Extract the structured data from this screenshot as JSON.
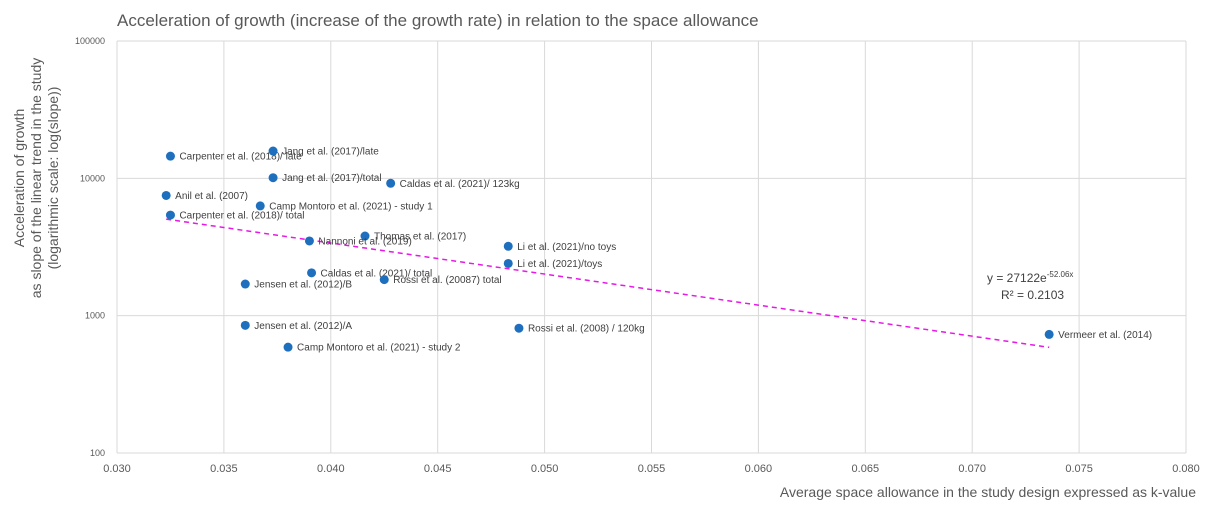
{
  "chart_data": {
    "type": "scatter",
    "title": "Acceleration of growth (increase of the growth rate) in relation to the space allowance",
    "xlabel": "Average space allowance in the study design expressed as k-value",
    "ylabel": [
      "Acceleration of growth",
      "as slope of the linear trend in the study",
      "(logarithmic scale: log(slope))"
    ],
    "xlim": [
      0.03,
      0.08
    ],
    "ylim": [
      100,
      100000
    ],
    "yscale": "log",
    "grid": true,
    "x_ticks": [
      "0.030",
      "0.035",
      "0.040",
      "0.045",
      "0.050",
      "0.055",
      "0.060",
      "0.065",
      "0.070",
      "0.075",
      "0.080"
    ],
    "y_ticks": [
      "100000",
      "10000",
      "1000",
      "100"
    ],
    "point_color": "#1f6fbf",
    "trend_color": "#e619e6",
    "trendline": {
      "a": 27122,
      "b": -52.06,
      "x_range": [
        0.0323,
        0.0736
      ],
      "equation_base": "y = 27122e",
      "equation_exp": "-52.06x",
      "r2_text": "R² = 0.2103"
    },
    "points": [
      {
        "label": "Carpenter et al. (2018)/ late",
        "x": 0.0325,
        "y": 14500
      },
      {
        "label": "Jang et al. (2017)/late",
        "x": 0.0373,
        "y": 15800
      },
      {
        "label": "Jang et al. (2017)/total",
        "x": 0.0373,
        "y": 10100
      },
      {
        "label": "Caldas et al. (2021)/ 123kg",
        "x": 0.0428,
        "y": 9200
      },
      {
        "label": "Anil et al. (2007)",
        "x": 0.0323,
        "y": 7500
      },
      {
        "label": "Camp Montoro et al. (2021) - study 1",
        "x": 0.0367,
        "y": 6300
      },
      {
        "label": "Carpenter et al. (2018)/ total",
        "x": 0.0325,
        "y": 5400
      },
      {
        "label": "Thomas et al. (2017)",
        "x": 0.0416,
        "y": 3800
      },
      {
        "label": "Nannoni et al. (2019)",
        "x": 0.039,
        "y": 3500
      },
      {
        "label": "Li et al. (2021)/no toys",
        "x": 0.0483,
        "y": 3200
      },
      {
        "label": "Li et al. (2021)/toys",
        "x": 0.0483,
        "y": 2400
      },
      {
        "label": "Caldas et al. (2021)/ total",
        "x": 0.0391,
        "y": 2050
      },
      {
        "label": "Rossi et al. (20087) total",
        "x": 0.0425,
        "y": 1830
      },
      {
        "label": "Jensen et al. (2012)/B",
        "x": 0.036,
        "y": 1700
      },
      {
        "label": "Jensen et al. (2012)/A",
        "x": 0.036,
        "y": 850
      },
      {
        "label": "Rossi et al. (2008) / 120kg",
        "x": 0.0488,
        "y": 810
      },
      {
        "label": "Vermeer et al. (2014)",
        "x": 0.0736,
        "y": 730
      },
      {
        "label": "Camp Montoro et al. (2021) - study 2",
        "x": 0.038,
        "y": 590
      }
    ]
  }
}
